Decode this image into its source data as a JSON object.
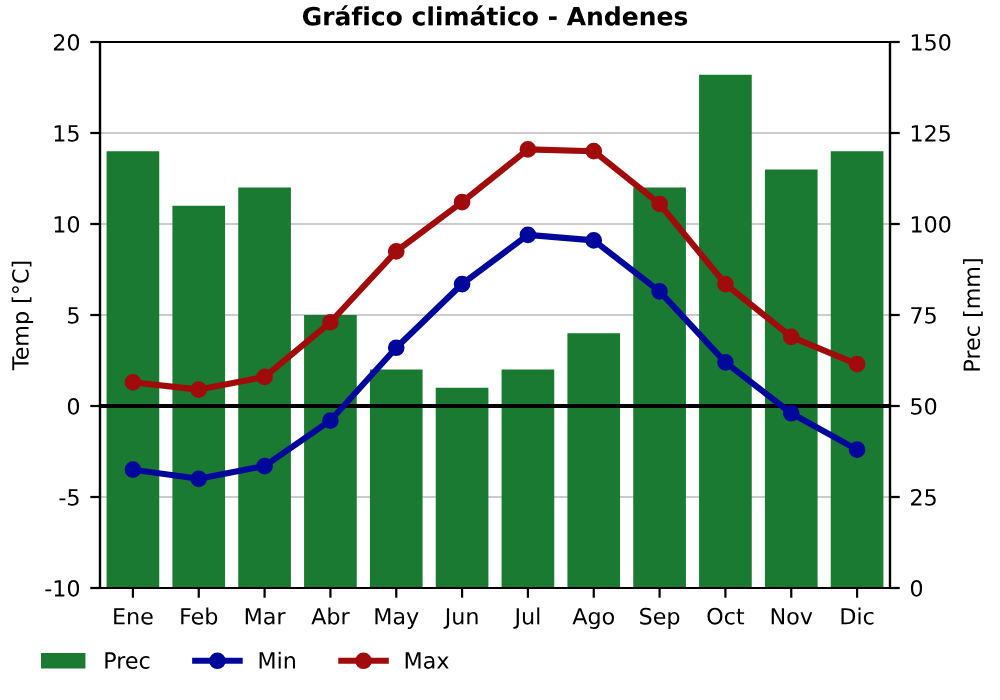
{
  "chart_data": {
    "type": "bar",
    "title": "Gráfico climático - Andenes",
    "ylabel": "Temp [°C]",
    "y2label": "Prec [mm]",
    "categories": [
      "Ene",
      "Feb",
      "Mar",
      "Abr",
      "May",
      "Jun",
      "Jul",
      "Ago",
      "Sep",
      "Oct",
      "Nov",
      "Dic"
    ],
    "series": [
      {
        "name": "Prec",
        "axis": "y2",
        "color": "#1a7a32",
        "values": [
          120,
          105,
          110,
          75,
          60,
          55,
          60,
          70,
          110,
          141,
          115,
          120
        ]
      },
      {
        "name": "Min",
        "type": "line",
        "axis": "y",
        "color": "#00089c",
        "values": [
          -3.5,
          -4.0,
          -3.3,
          -0.8,
          3.2,
          6.7,
          9.4,
          9.1,
          6.3,
          2.4,
          -0.4,
          -2.4
        ]
      },
      {
        "name": "Max",
        "type": "line",
        "axis": "y",
        "color": "#a10b0b",
        "values": [
          1.3,
          0.9,
          1.6,
          4.6,
          8.5,
          11.2,
          14.1,
          14.0,
          11.1,
          6.7,
          3.8,
          2.3
        ]
      }
    ],
    "ylim": [
      -10,
      20
    ],
    "yticks": [
      -10,
      -5,
      0,
      5,
      10,
      15,
      20
    ],
    "y2lim": [
      0,
      150
    ],
    "y2ticks": [
      0,
      25,
      50,
      75,
      100,
      125,
      150
    ],
    "ref_lines": [
      {
        "axis": "y",
        "value": 0,
        "color": "#000000"
      }
    ],
    "grid": "y",
    "legend": "bottom left",
    "marker": "circle",
    "line_style": "solid"
  }
}
